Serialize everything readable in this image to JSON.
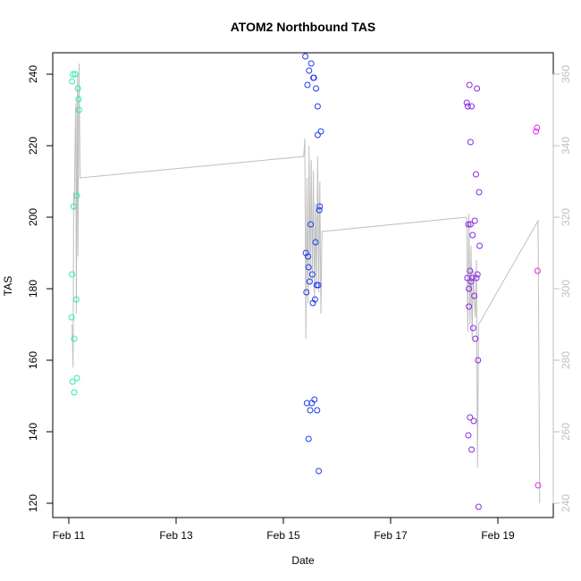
{
  "chart_data": {
    "type": "scatter",
    "title": "ATOM2 Northbound TAS",
    "xlabel": "Date",
    "ylabel": "TAS",
    "x_ticks": [
      "Feb 11",
      "Feb 13",
      "Feb 15",
      "Feb 17",
      "Feb 19"
    ],
    "x_range_days": [
      11.0,
      20.0
    ],
    "ylim": [
      116,
      246
    ],
    "y_ticks": [
      120,
      140,
      160,
      180,
      200,
      220,
      240
    ],
    "y2lim": [
      236,
      366
    ],
    "y2_ticks": [
      240,
      260,
      280,
      300,
      320,
      340,
      360
    ],
    "grid": false,
    "colors": {
      "axis": "#000000",
      "line": "#bfbfbf",
      "right_axis": "#bfbfbf"
    },
    "series": [
      {
        "color": "#2ee8b8",
        "points": [
          {
            "x": 11.05,
            "y": 172
          },
          {
            "x": 11.06,
            "y": 184
          },
          {
            "x": 11.06,
            "y": 238
          },
          {
            "x": 11.07,
            "y": 154
          },
          {
            "x": 11.08,
            "y": 240
          },
          {
            "x": 11.09,
            "y": 203
          },
          {
            "x": 11.1,
            "y": 166
          },
          {
            "x": 11.1,
            "y": 151
          },
          {
            "x": 11.12,
            "y": 240
          },
          {
            "x": 11.14,
            "y": 177
          },
          {
            "x": 11.15,
            "y": 155
          },
          {
            "x": 11.15,
            "y": 206
          },
          {
            "x": 11.17,
            "y": 236
          },
          {
            "x": 11.18,
            "y": 233
          },
          {
            "x": 11.19,
            "y": 230
          }
        ]
      },
      {
        "color": "#1e3cf0",
        "points": [
          {
            "x": 15.41,
            "y": 245
          },
          {
            "x": 15.42,
            "y": 190
          },
          {
            "x": 15.43,
            "y": 179
          },
          {
            "x": 15.44,
            "y": 148
          },
          {
            "x": 15.45,
            "y": 237
          },
          {
            "x": 15.46,
            "y": 189
          },
          {
            "x": 15.47,
            "y": 186
          },
          {
            "x": 15.47,
            "y": 138
          },
          {
            "x": 15.48,
            "y": 241
          },
          {
            "x": 15.49,
            "y": 182
          },
          {
            "x": 15.5,
            "y": 146
          },
          {
            "x": 15.51,
            "y": 198
          },
          {
            "x": 15.52,
            "y": 243
          },
          {
            "x": 15.53,
            "y": 148
          },
          {
            "x": 15.54,
            "y": 184
          },
          {
            "x": 15.55,
            "y": 176
          },
          {
            "x": 15.56,
            "y": 239
          },
          {
            "x": 15.57,
            "y": 239
          },
          {
            "x": 15.58,
            "y": 149
          },
          {
            "x": 15.59,
            "y": 177
          },
          {
            "x": 15.6,
            "y": 193
          },
          {
            "x": 15.61,
            "y": 236
          },
          {
            "x": 15.62,
            "y": 181
          },
          {
            "x": 15.63,
            "y": 146
          },
          {
            "x": 15.64,
            "y": 223
          },
          {
            "x": 15.64,
            "y": 231
          },
          {
            "x": 15.65,
            "y": 181
          },
          {
            "x": 15.66,
            "y": 129
          },
          {
            "x": 15.67,
            "y": 202
          },
          {
            "x": 15.68,
            "y": 203
          },
          {
            "x": 15.7,
            "y": 224
          }
        ]
      },
      {
        "color": "#8a2be2",
        "points": [
          {
            "x": 18.42,
            "y": 232
          },
          {
            "x": 18.43,
            "y": 183
          },
          {
            "x": 18.44,
            "y": 231
          },
          {
            "x": 18.45,
            "y": 198
          },
          {
            "x": 18.45,
            "y": 139
          },
          {
            "x": 18.46,
            "y": 180
          },
          {
            "x": 18.46,
            "y": 175
          },
          {
            "x": 18.47,
            "y": 237
          },
          {
            "x": 18.48,
            "y": 144
          },
          {
            "x": 18.48,
            "y": 185
          },
          {
            "x": 18.49,
            "y": 198
          },
          {
            "x": 18.49,
            "y": 221
          },
          {
            "x": 18.5,
            "y": 182
          },
          {
            "x": 18.51,
            "y": 135
          },
          {
            "x": 18.51,
            "y": 231
          },
          {
            "x": 18.52,
            "y": 183
          },
          {
            "x": 18.53,
            "y": 195
          },
          {
            "x": 18.54,
            "y": 169
          },
          {
            "x": 18.55,
            "y": 143
          },
          {
            "x": 18.56,
            "y": 178
          },
          {
            "x": 18.57,
            "y": 199
          },
          {
            "x": 18.58,
            "y": 166
          },
          {
            "x": 18.59,
            "y": 212
          },
          {
            "x": 18.6,
            "y": 183
          },
          {
            "x": 18.61,
            "y": 236
          },
          {
            "x": 18.62,
            "y": 184
          },
          {
            "x": 18.63,
            "y": 160
          },
          {
            "x": 18.64,
            "y": 119
          },
          {
            "x": 18.65,
            "y": 207
          },
          {
            "x": 18.66,
            "y": 192
          }
        ]
      },
      {
        "color": "#e22de0",
        "points": [
          {
            "x": 19.71,
            "y": 224
          },
          {
            "x": 19.73,
            "y": 225
          },
          {
            "x": 19.74,
            "y": 185
          },
          {
            "x": 19.75,
            "y": 125
          }
        ]
      }
    ],
    "line_right_axis": [
      [
        11.06,
        290
      ],
      [
        11.08,
        278
      ],
      [
        11.09,
        327
      ],
      [
        11.1,
        322
      ],
      [
        11.12,
        344
      ],
      [
        11.13,
        352
      ],
      [
        11.14,
        293
      ],
      [
        11.16,
        360
      ],
      [
        11.17,
        309
      ],
      [
        11.19,
        363
      ],
      [
        11.21,
        331
      ],
      [
        15.38,
        337
      ],
      [
        15.4,
        342
      ],
      [
        15.42,
        286
      ],
      [
        15.44,
        331
      ],
      [
        15.46,
        296
      ],
      [
        15.48,
        340
      ],
      [
        15.5,
        301
      ],
      [
        15.52,
        336
      ],
      [
        15.54,
        302
      ],
      [
        15.56,
        333
      ],
      [
        15.58,
        296
      ],
      [
        15.6,
        324
      ],
      [
        15.62,
        301
      ],
      [
        15.64,
        337
      ],
      [
        15.66,
        299
      ],
      [
        15.68,
        330
      ],
      [
        15.7,
        293
      ],
      [
        15.72,
        316
      ],
      [
        18.42,
        320
      ],
      [
        18.44,
        288
      ],
      [
        18.46,
        321
      ],
      [
        18.48,
        290
      ],
      [
        18.5,
        312
      ],
      [
        18.52,
        286
      ],
      [
        18.54,
        305
      ],
      [
        18.56,
        297
      ],
      [
        18.58,
        292
      ],
      [
        18.6,
        308
      ],
      [
        18.62,
        250
      ],
      [
        18.64,
        290
      ],
      [
        19.75,
        319
      ],
      [
        19.78,
        240
      ]
    ]
  }
}
